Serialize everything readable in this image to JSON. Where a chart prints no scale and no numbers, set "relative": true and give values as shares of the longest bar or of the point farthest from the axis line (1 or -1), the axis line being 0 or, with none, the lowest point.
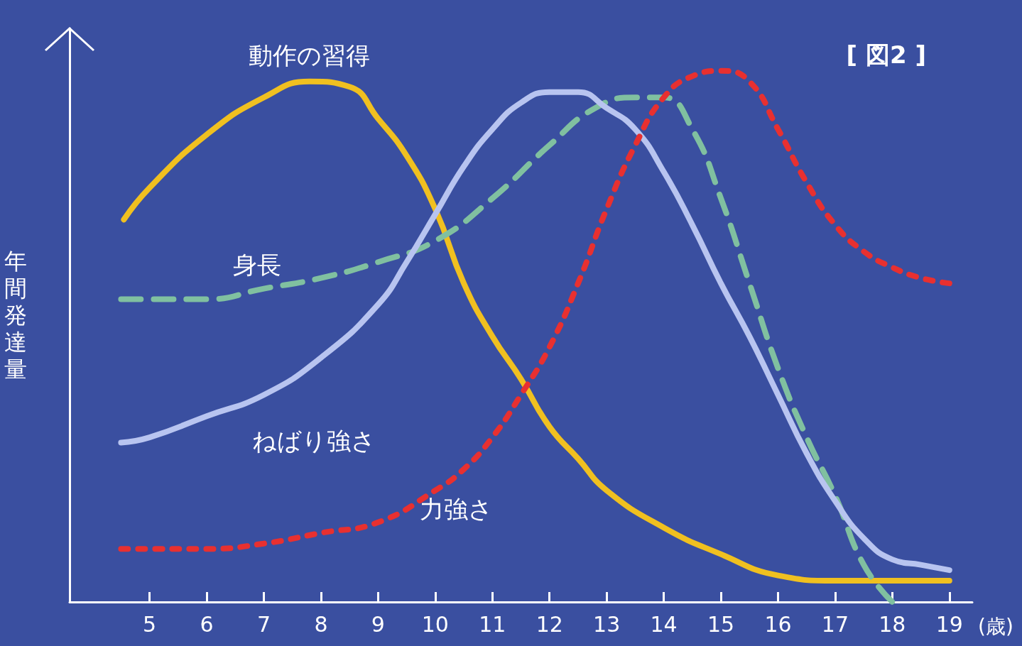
{
  "chart_data": {
    "type": "line",
    "relative": true,
    "ylabel": "年間発達量",
    "xlabel": "(歳)",
    "annotations": [
      "[ 図2 ]"
    ],
    "xlim": [
      3.6,
      19.4
    ],
    "xticks": [
      5,
      6,
      7,
      8,
      9,
      10,
      11,
      12,
      13,
      14,
      15,
      16,
      17,
      18,
      19
    ],
    "grid": false,
    "legend": false,
    "marker": "none",
    "series": [
      {
        "name": "動作の習得",
        "color": "#f0c020",
        "line_style": "solid",
        "x": [
          4.55,
          5,
          6,
          7,
          7.8,
          8.5,
          9,
          9.5,
          10,
          10.5,
          11,
          11.5,
          12,
          12.5,
          13,
          14,
          15,
          16,
          17,
          18,
          19
        ],
        "values": [
          0.72,
          0.78,
          0.88,
          0.95,
          0.98,
          0.97,
          0.91,
          0.84,
          0.74,
          0.6,
          0.5,
          0.42,
          0.33,
          0.27,
          0.21,
          0.14,
          0.09,
          0.05,
          0.04,
          0.04,
          0.04
        ]
      },
      {
        "name": "身長",
        "color": "#80c0a0",
        "line_style": "dashed",
        "x": [
          4.5,
          5,
          6,
          7,
          8,
          9,
          10,
          11,
          12,
          12.8,
          13.5,
          14,
          14.5,
          15,
          15.5,
          16,
          16.5,
          17,
          17.5,
          18
        ],
        "values": [
          0.57,
          0.57,
          0.57,
          0.59,
          0.61,
          0.64,
          0.68,
          0.76,
          0.86,
          0.93,
          0.95,
          0.95,
          0.89,
          0.76,
          0.6,
          0.44,
          0.31,
          0.2,
          0.07,
          0
        ]
      },
      {
        "name": "ねばり強さ",
        "color": "#b8c4f0",
        "line_style": "solid",
        "x": [
          4.5,
          5,
          6,
          7,
          8,
          9,
          9.5,
          10,
          10.5,
          11,
          11.5,
          12,
          12.5,
          13,
          13.5,
          14,
          14.5,
          15,
          15.5,
          16,
          16.5,
          17,
          17.5,
          18,
          18.5,
          19
        ],
        "values": [
          0.3,
          0.31,
          0.35,
          0.39,
          0.46,
          0.56,
          0.64,
          0.73,
          0.82,
          0.89,
          0.94,
          0.96,
          0.96,
          0.93,
          0.89,
          0.81,
          0.71,
          0.6,
          0.5,
          0.39,
          0.28,
          0.19,
          0.12,
          0.08,
          0.07,
          0.06
        ]
      },
      {
        "name": "力強さ",
        "color": "#e83030",
        "line_style": "dotted",
        "x": [
          4.5,
          5,
          6,
          7,
          8,
          9,
          10,
          10.5,
          11,
          11.5,
          12,
          12.5,
          13,
          13.5,
          14,
          14.5,
          15,
          15.5,
          16,
          16.5,
          17,
          17.5,
          18,
          18.5,
          19
        ],
        "values": [
          0.1,
          0.1,
          0.1,
          0.11,
          0.13,
          0.15,
          0.21,
          0.25,
          0.31,
          0.39,
          0.48,
          0.6,
          0.74,
          0.86,
          0.95,
          0.99,
          1,
          0.98,
          0.89,
          0.79,
          0.71,
          0.66,
          0.63,
          0.61,
          0.6
        ]
      }
    ]
  }
}
